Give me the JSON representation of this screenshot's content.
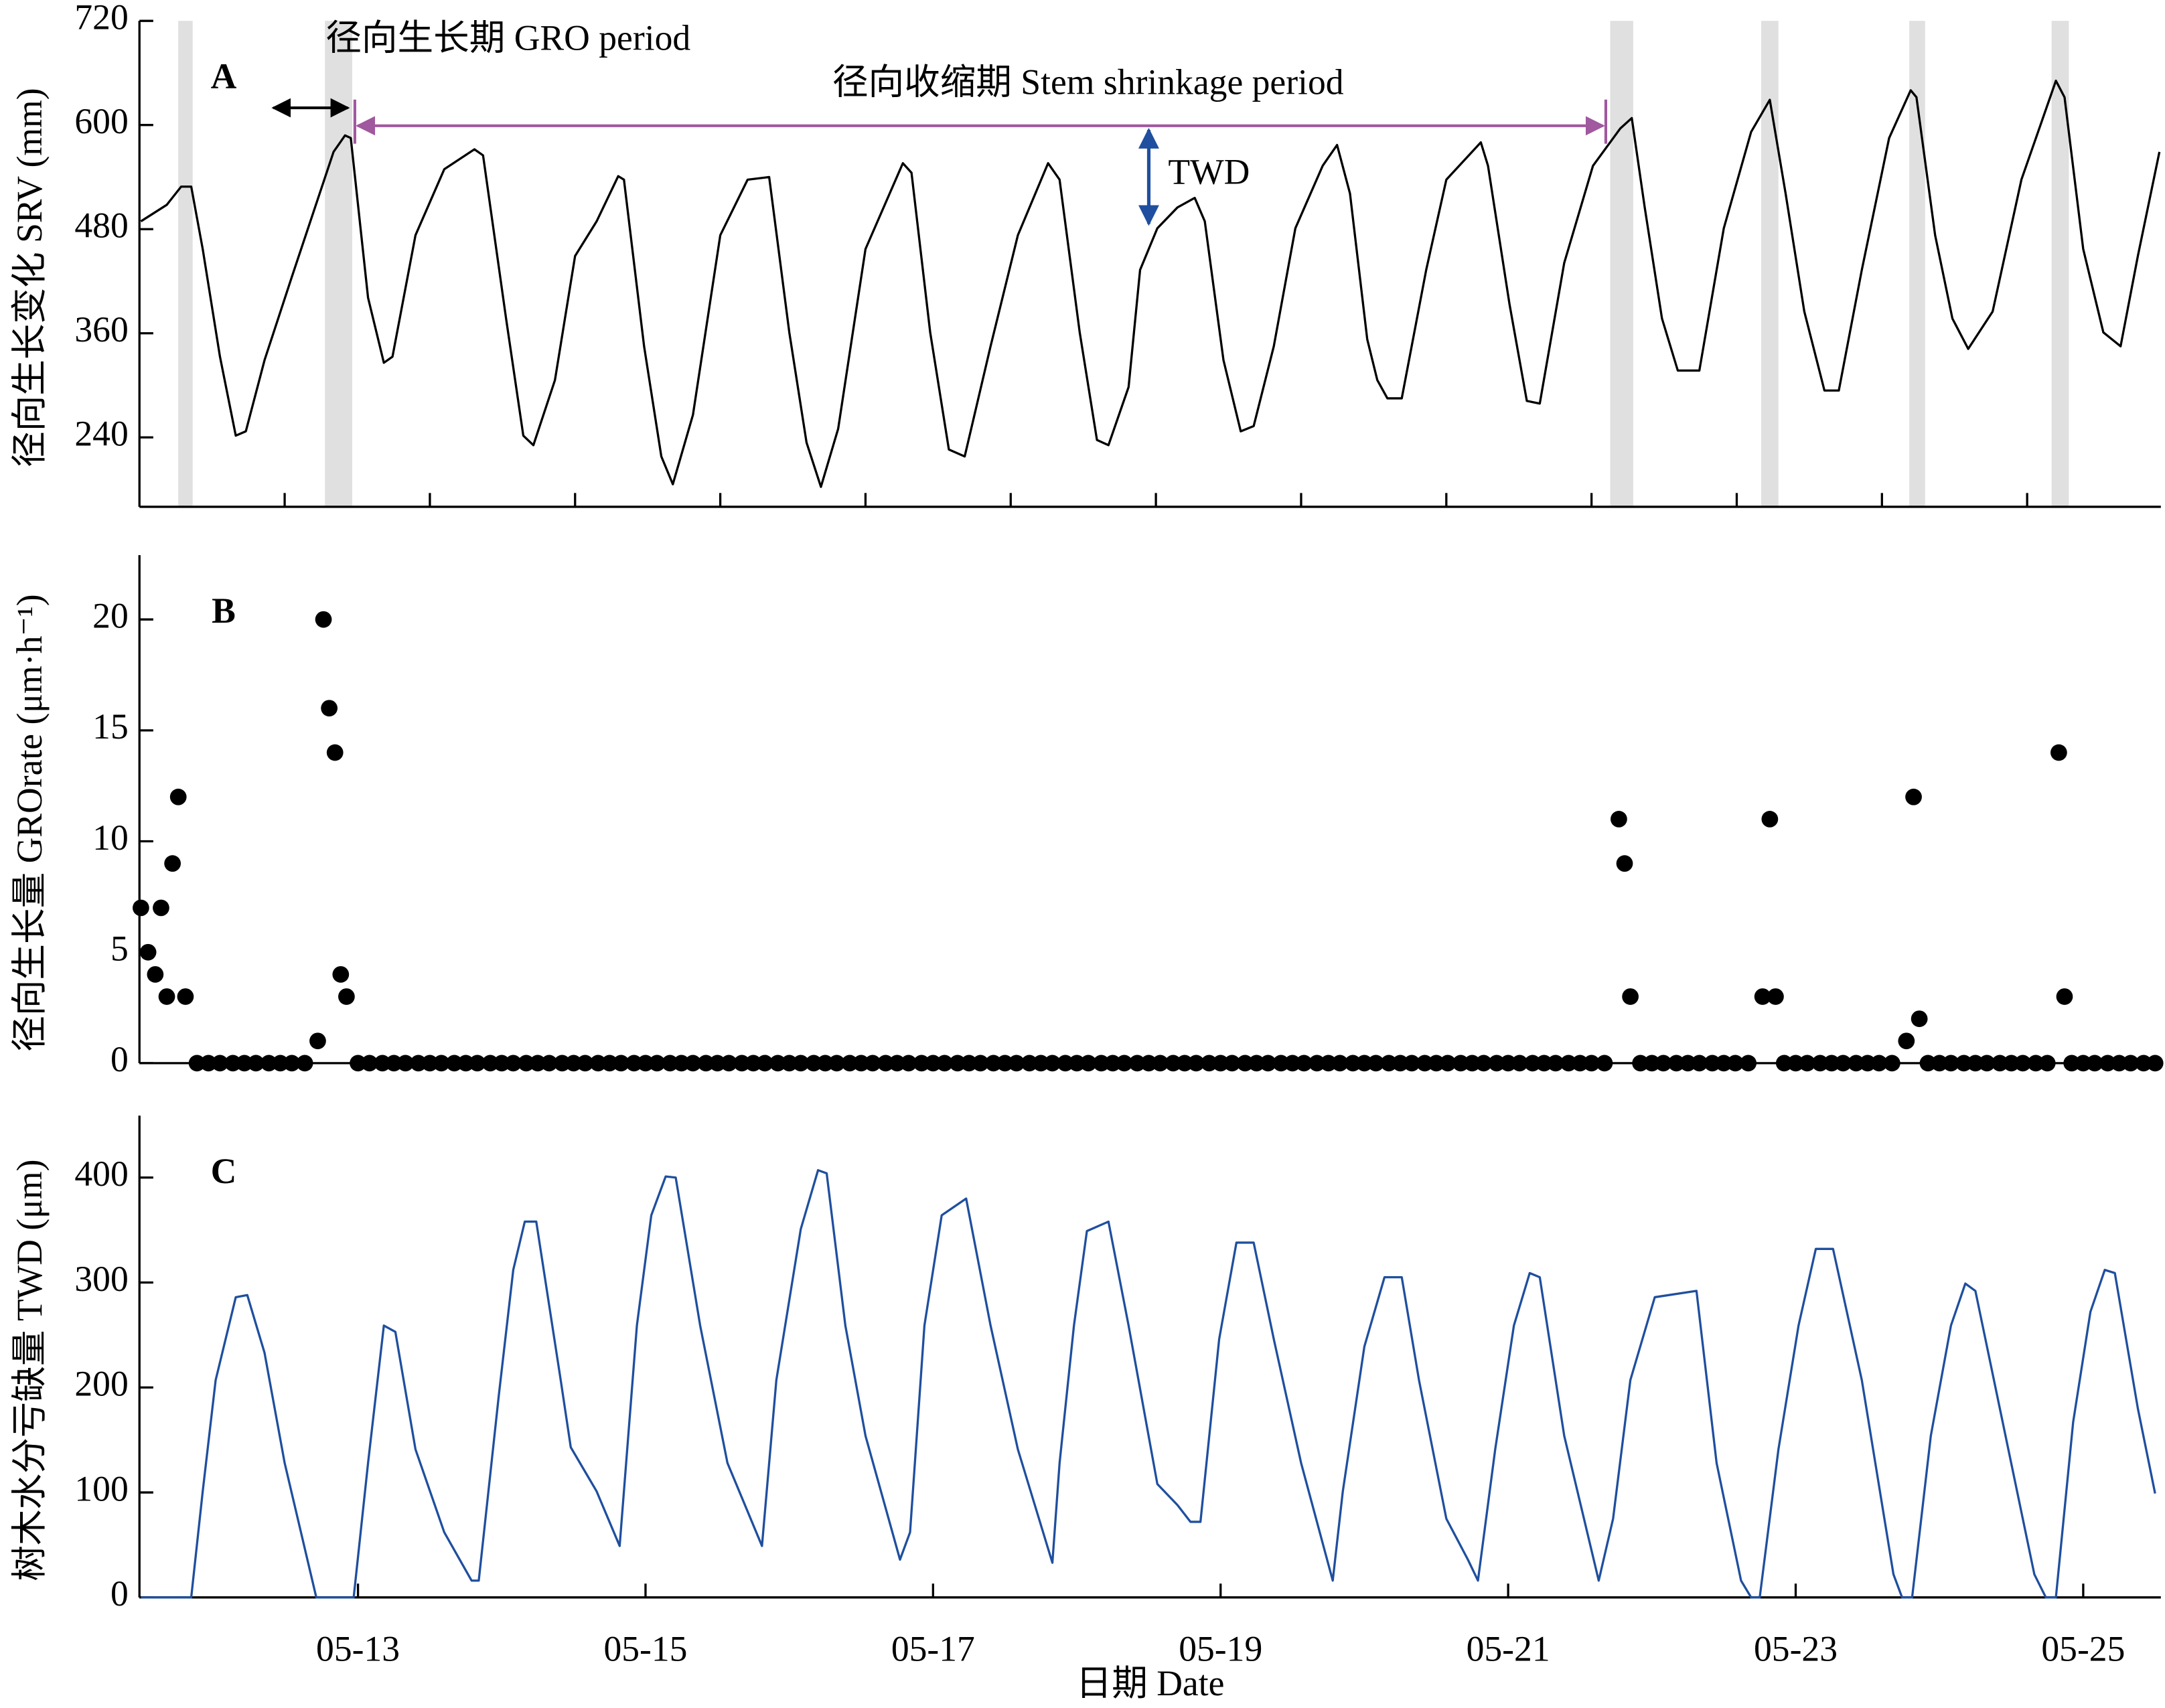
{
  "chart_data": [
    {
      "type": "line",
      "panel_label": "A",
      "ylabel": "径向生长变化 SRV (mm)",
      "color": "#000000",
      "xlim": [
        11.48,
        25.54
      ],
      "ylim": [
        160,
        720
      ],
      "yticks": [
        240,
        360,
        480,
        600,
        720
      ],
      "xticks": [
        12.49,
        13.5,
        14.51,
        15.52,
        16.53,
        17.54,
        18.55,
        19.56,
        20.57,
        21.58,
        22.59,
        23.6,
        24.61
      ],
      "xtick_labels": false,
      "shaded_spans": [
        [
          11.75,
          11.85
        ],
        [
          12.77,
          12.96
        ],
        [
          21.71,
          21.87
        ],
        [
          22.76,
          22.88
        ],
        [
          23.79,
          23.9
        ],
        [
          24.78,
          24.9
        ]
      ],
      "shade_color": "#e0e0e0",
      "annotations": [
        "径向生长期  GRO period",
        "径向收缩期 Stem shrinkage period",
        "TWD"
      ],
      "x": [
        11.49,
        11.67,
        11.77,
        11.84,
        11.92,
        12.04,
        12.15,
        12.22,
        12.35,
        12.54,
        12.83,
        12.91,
        12.95,
        13.07,
        13.18,
        13.24,
        13.4,
        13.6,
        13.81,
        13.87,
        14.03,
        14.15,
        14.22,
        14.37,
        14.51,
        14.66,
        14.81,
        14.85,
        14.99,
        15.11,
        15.19,
        15.33,
        15.52,
        15.71,
        15.86,
        16.0,
        16.12,
        16.22,
        16.34,
        16.53,
        16.79,
        16.85,
        16.98,
        17.11,
        17.22,
        17.4,
        17.59,
        17.8,
        17.88,
        18.02,
        18.14,
        18.22,
        18.36,
        18.44,
        18.56,
        18.7,
        18.82,
        18.89,
        19.02,
        19.14,
        19.23,
        19.37,
        19.52,
        19.71,
        19.81,
        19.9,
        20.02,
        20.09,
        20.16,
        20.26,
        20.43,
        20.57,
        20.81,
        20.86,
        21.01,
        21.13,
        21.22,
        21.39,
        21.59,
        21.78,
        21.86,
        21.95,
        22.07,
        22.18,
        22.33,
        22.5,
        22.69,
        22.82,
        22.93,
        23.06,
        23.2,
        23.3,
        23.46,
        23.65,
        23.8,
        23.84,
        23.97,
        24.09,
        24.2,
        24.37,
        24.57,
        24.81,
        24.87,
        25.0,
        25.14,
        25.26,
        25.38,
        25.53
      ],
      "values": [
        489,
        508,
        529,
        529,
        457,
        333,
        242,
        247,
        329,
        425,
        569,
        588,
        585,
        401,
        326,
        333,
        473,
        549,
        572,
        565,
        377,
        242,
        231,
        306,
        449,
        489,
        541,
        537,
        345,
        218,
        186,
        266,
        473,
        537,
        540,
        361,
        234,
        183,
        250,
        457,
        556,
        545,
        361,
        226,
        218,
        345,
        473,
        556,
        537,
        361,
        237,
        231,
        298,
        433,
        481,
        505,
        516,
        489,
        329,
        247,
        253,
        345,
        481,
        553,
        577,
        521,
        353,
        306,
        285,
        285,
        433,
        537,
        580,
        553,
        393,
        282,
        279,
        441,
        553,
        596,
        608,
        505,
        377,
        317,
        317,
        481,
        592,
        629,
        521,
        385,
        294,
        294,
        433,
        585,
        640,
        632,
        473,
        377,
        342,
        385,
        537,
        651,
        632,
        457,
        361,
        345,
        449,
        569
      ]
    },
    {
      "type": "scatter",
      "panel_label": "B",
      "ylabel": "径向生长量 GROrate (μm·h⁻¹)",
      "color": "#000000",
      "xlim": [
        11.48,
        25.54
      ],
      "ylim": [
        0,
        22.9
      ],
      "yticks": [
        0,
        5,
        10,
        15,
        20
      ],
      "x": [
        11.49,
        11.54,
        11.59,
        11.63,
        11.67,
        11.71,
        11.75,
        11.8,
        11.88,
        11.96,
        12.04,
        12.13,
        12.21,
        12.29,
        12.38,
        12.46,
        12.54,
        12.63,
        12.72,
        12.76,
        12.8,
        12.84,
        12.88,
        12.92,
        13,
        13.08,
        13.17,
        13.25,
        13.33,
        13.42,
        13.5,
        13.58,
        13.67,
        13.75,
        13.83,
        13.92,
        14,
        14.08,
        14.17,
        14.25,
        14.33,
        14.42,
        14.5,
        14.58,
        14.67,
        14.75,
        14.83,
        14.92,
        15,
        15.08,
        15.17,
        15.25,
        15.33,
        15.42,
        15.5,
        15.58,
        15.67,
        15.75,
        15.83,
        15.92,
        16,
        16.08,
        16.17,
        16.25,
        16.33,
        16.42,
        16.5,
        16.58,
        16.67,
        16.75,
        16.83,
        16.92,
        17,
        17.08,
        17.17,
        17.25,
        17.33,
        17.42,
        17.5,
        17.58,
        17.67,
        17.75,
        17.83,
        17.92,
        18,
        18.08,
        18.17,
        18.25,
        18.33,
        18.42,
        18.5,
        18.58,
        18.67,
        18.75,
        18.83,
        18.92,
        19,
        19.08,
        19.17,
        19.25,
        19.33,
        19.42,
        19.5,
        19.58,
        19.67,
        19.75,
        19.83,
        19.92,
        20,
        20.08,
        20.17,
        20.25,
        20.33,
        20.42,
        20.5,
        20.58,
        20.67,
        20.75,
        20.83,
        20.92,
        21,
        21.08,
        21.17,
        21.25,
        21.33,
        21.42,
        21.5,
        21.58,
        21.67,
        21.77,
        21.81,
        21.85,
        21.92,
        22,
        22.08,
        22.17,
        22.25,
        22.33,
        22.42,
        22.5,
        22.58,
        22.67,
        22.77,
        22.82,
        22.86,
        22.92,
        23,
        23.08,
        23.17,
        23.25,
        23.33,
        23.42,
        23.5,
        23.58,
        23.67,
        23.77,
        23.82,
        23.86,
        23.92,
        24,
        24.08,
        24.17,
        24.25,
        24.33,
        24.42,
        24.5,
        24.58,
        24.67,
        24.75,
        24.83,
        24.87,
        24.92,
        25,
        25.08,
        25.17,
        25.25,
        25.33,
        25.42,
        25.5
      ],
      "values": [
        7,
        5,
        4,
        7,
        3,
        9,
        12,
        3,
        0,
        0,
        0,
        0,
        0,
        0,
        0,
        0,
        0,
        0,
        1,
        20,
        16,
        14,
        4,
        3,
        0,
        0,
        0,
        0,
        0,
        0,
        0,
        0,
        0,
        0,
        0,
        0,
        0,
        0,
        0,
        0,
        0,
        0,
        0,
        0,
        0,
        0,
        0,
        0,
        0,
        0,
        0,
        0,
        0,
        0,
        0,
        0,
        0,
        0,
        0,
        0,
        0,
        0,
        0,
        0,
        0,
        0,
        0,
        0,
        0,
        0,
        0,
        0,
        0,
        0,
        0,
        0,
        0,
        0,
        0,
        0,
        0,
        0,
        0,
        0,
        0,
        0,
        0,
        0,
        0,
        0,
        0,
        0,
        0,
        0,
        0,
        0,
        0,
        0,
        0,
        0,
        0,
        0,
        0,
        0,
        0,
        0,
        0,
        0,
        0,
        0,
        0,
        0,
        0,
        0,
        0,
        0,
        0,
        0,
        0,
        0,
        0,
        0,
        0,
        0,
        0,
        0,
        0,
        0,
        0,
        11,
        9,
        3,
        0,
        0,
        0,
        0,
        0,
        0,
        0,
        0,
        0,
        0,
        3,
        11,
        3,
        0,
        0,
        0,
        0,
        0,
        0,
        0,
        0,
        0,
        0,
        1,
        12,
        2,
        0,
        0,
        0,
        0,
        0,
        0,
        0,
        0,
        0,
        0,
        0,
        14,
        3,
        0,
        0,
        0,
        0,
        0,
        0,
        0,
        0
      ]
    },
    {
      "type": "line",
      "panel_label": "C",
      "ylabel": "树木水分亏缺量 TWD (μm)",
      "xlabel": "日期 Date",
      "color": "#1f4f9e",
      "xlim": [
        11.48,
        25.54
      ],
      "ylim": [
        0,
        459
      ],
      "yticks": [
        0,
        100,
        200,
        300,
        400
      ],
      "xticks": [
        {
          "value": 13,
          "label": "05-13"
        },
        {
          "value": 15,
          "label": "05-15"
        },
        {
          "value": 17,
          "label": "05-17"
        },
        {
          "value": 19,
          "label": "05-19"
        },
        {
          "value": 21,
          "label": "05-21"
        },
        {
          "value": 23,
          "label": "05-23"
        },
        {
          "value": 25,
          "label": "05-25"
        }
      ],
      "x": [
        11.49,
        11.84,
        11.92,
        12.01,
        12.15,
        12.23,
        12.35,
        12.49,
        12.71,
        12.97,
        13.07,
        13.18,
        13.26,
        13.4,
        13.6,
        13.79,
        13.84,
        13.98,
        14.08,
        14.16,
        14.24,
        14.41,
        14.48,
        14.66,
        14.82,
        14.94,
        15.04,
        15.14,
        15.21,
        15.38,
        15.57,
        15.81,
        15.91,
        16.08,
        16.2,
        16.26,
        16.39,
        16.53,
        16.77,
        16.84,
        16.94,
        17.06,
        17.23,
        17.4,
        17.59,
        17.83,
        17.88,
        17.98,
        18.07,
        18.22,
        18.36,
        18.56,
        18.7,
        18.79,
        18.86,
        18.99,
        19.11,
        19.23,
        19.37,
        19.56,
        19.78,
        19.85,
        20.0,
        20.14,
        20.26,
        20.38,
        20.57,
        20.72,
        20.79,
        20.91,
        21.04,
        21.15,
        21.22,
        21.39,
        21.63,
        21.73,
        21.85,
        22.02,
        22.31,
        22.45,
        22.62,
        22.69,
        22.75,
        22.88,
        23.02,
        23.14,
        23.26,
        23.46,
        23.68,
        23.74,
        23.81,
        23.94,
        24.08,
        24.18,
        24.25,
        24.42,
        24.66,
        24.74,
        24.81,
        24.93,
        25.05,
        25.15,
        25.22,
        25.38,
        25.5
      ],
      "values": [
        0,
        0,
        101,
        207,
        286,
        288,
        233,
        128,
        0,
        0,
        128,
        259,
        253,
        141,
        62,
        16,
        16,
        193,
        312,
        358,
        358,
        207,
        143,
        101,
        49,
        259,
        364,
        401,
        400,
        259,
        128,
        49,
        207,
        351,
        407,
        404,
        259,
        154,
        36,
        62,
        259,
        364,
        380,
        259,
        141,
        33,
        128,
        259,
        349,
        358,
        259,
        108,
        88,
        72,
        72,
        246,
        338,
        338,
        246,
        128,
        16,
        101,
        239,
        305,
        305,
        207,
        75,
        36,
        16,
        141,
        259,
        309,
        305,
        154,
        16,
        75,
        207,
        286,
        292,
        128,
        16,
        0,
        0,
        141,
        259,
        332,
        332,
        207,
        22,
        0,
        0,
        154,
        259,
        299,
        292,
        180,
        22,
        0,
        0,
        167,
        272,
        312,
        309,
        180,
        99
      ]
    }
  ]
}
